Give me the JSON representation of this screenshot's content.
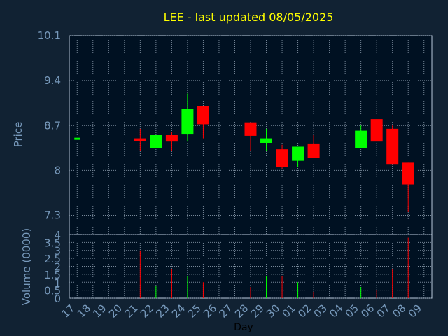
{
  "chart_data": [
    {
      "type": "candlestick",
      "title": "LEE - last updated 08/05/2025",
      "ylabel": "Price",
      "ylim": [
        7.0,
        10.1
      ],
      "yticks": [
        "10.1",
        "9.4",
        "8.7",
        "8",
        "7.3"
      ],
      "grid": true,
      "colors": {
        "up": "#00ff00",
        "down": "#ff0000",
        "background": "#112233",
        "plot_background": "#001122",
        "title": "#ffff00",
        "axis_text": "#7799bb",
        "grid": "#778899"
      },
      "categories": [
        "17",
        "18",
        "19",
        "20",
        "21",
        "22",
        "23",
        "24",
        "25",
        "26",
        "27",
        "28",
        "29",
        "30",
        "01",
        "02",
        "03",
        "04",
        "05",
        "06",
        "07",
        "08",
        "09"
      ],
      "candles": [
        {
          "day": "17",
          "open": 8.51,
          "high": 8.51,
          "low": 8.51,
          "close": 8.51
        },
        {
          "day": "21",
          "open": 8.5,
          "high": 8.65,
          "low": 8.3,
          "close": 8.46
        },
        {
          "day": "22",
          "open": 8.35,
          "high": 8.55,
          "low": 8.35,
          "close": 8.55
        },
        {
          "day": "23",
          "open": 8.55,
          "high": 8.6,
          "low": 8.3,
          "close": 8.45
        },
        {
          "day": "24",
          "open": 8.56,
          "high": 9.2,
          "low": 8.45,
          "close": 8.96
        },
        {
          "day": "25",
          "open": 9.0,
          "high": 9.0,
          "low": 8.5,
          "close": 8.72
        },
        {
          "day": "28",
          "open": 8.75,
          "high": 8.75,
          "low": 8.3,
          "close": 8.54
        },
        {
          "day": "29",
          "open": 8.43,
          "high": 8.65,
          "low": 8.3,
          "close": 8.5
        },
        {
          "day": "30",
          "open": 8.33,
          "high": 8.4,
          "low": 8.03,
          "close": 8.05
        },
        {
          "day": "01",
          "open": 8.15,
          "high": 8.37,
          "low": 8.05,
          "close": 8.37
        },
        {
          "day": "02",
          "open": 8.42,
          "high": 8.55,
          "low": 8.2,
          "close": 8.2
        },
        {
          "day": "05",
          "open": 8.35,
          "high": 8.7,
          "low": 8.35,
          "close": 8.62
        },
        {
          "day": "06",
          "open": 8.8,
          "high": 8.8,
          "low": 8.45,
          "close": 8.45
        },
        {
          "day": "07",
          "open": 8.65,
          "high": 8.7,
          "low": 8.1,
          "close": 8.1
        },
        {
          "day": "08",
          "open": 8.12,
          "high": 8.12,
          "low": 7.35,
          "close": 7.78
        }
      ]
    },
    {
      "type": "bar",
      "ylabel": "Volume (0000)",
      "xlabel": "Day",
      "ylim": [
        0,
        4
      ],
      "yticks": [
        "4",
        "3.5",
        "3",
        "2.5",
        "2",
        "1.5",
        "1",
        "0.5",
        "0"
      ],
      "grid": true,
      "categories": [
        "17",
        "18",
        "19",
        "20",
        "21",
        "22",
        "23",
        "24",
        "25",
        "26",
        "27",
        "28",
        "29",
        "30",
        "01",
        "02",
        "03",
        "04",
        "05",
        "06",
        "07",
        "08",
        "09"
      ],
      "bars": [
        {
          "day": "21",
          "value": 3.0,
          "direction": "down"
        },
        {
          "day": "22",
          "value": 0.75,
          "direction": "up"
        },
        {
          "day": "23",
          "value": 1.8,
          "direction": "down"
        },
        {
          "day": "24",
          "value": 1.4,
          "direction": "up"
        },
        {
          "day": "25",
          "value": 1.0,
          "direction": "down"
        },
        {
          "day": "28",
          "value": 0.7,
          "direction": "down"
        },
        {
          "day": "29",
          "value": 1.4,
          "direction": "up"
        },
        {
          "day": "30",
          "value": 1.4,
          "direction": "down"
        },
        {
          "day": "01",
          "value": 1.0,
          "direction": "up"
        },
        {
          "day": "02",
          "value": 0.4,
          "direction": "down"
        },
        {
          "day": "05",
          "value": 0.7,
          "direction": "up"
        },
        {
          "day": "06",
          "value": 0.5,
          "direction": "down"
        },
        {
          "day": "07",
          "value": 1.8,
          "direction": "down"
        },
        {
          "day": "08",
          "value": 3.8,
          "direction": "down"
        }
      ]
    }
  ]
}
